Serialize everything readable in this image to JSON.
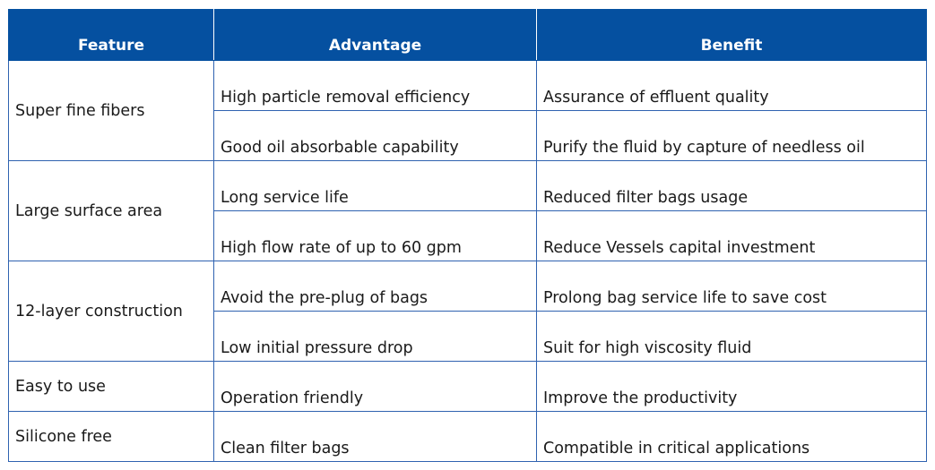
{
  "headers": {
    "feature": "Feature",
    "advantage": "Advantage",
    "benefit": "Benefit"
  },
  "rows": [
    {
      "feature": "Super fine fibers",
      "items": [
        {
          "advantage": "High particle removal efficiency",
          "benefit": "Assurance of effluent quality"
        },
        {
          "advantage": "Good oil absorbable capability",
          "benefit": "Purify the fluid by capture of needless oil"
        }
      ]
    },
    {
      "feature": "Large surface area",
      "items": [
        {
          "advantage": "Long service life",
          "benefit": "Reduced filter bags usage"
        },
        {
          "advantage": "High flow rate of up to 60 gpm",
          "benefit": "Reduce Vessels capital investment"
        }
      ]
    },
    {
      "feature": "12-layer construction",
      "items": [
        {
          "advantage": "Avoid the pre-plug of bags",
          "benefit": "Prolong bag service life to save cost"
        },
        {
          "advantage": "Low initial pressure drop",
          "benefit": "Suit for high viscosity fluid"
        }
      ]
    },
    {
      "feature": "Easy to use",
      "items": [
        {
          "advantage": "Operation friendly",
          "benefit": "Improve the productivity"
        }
      ]
    },
    {
      "feature": "Silicone free",
      "items": [
        {
          "advantage": "Clean filter bags",
          "benefit": "Compatible in critical applications"
        }
      ]
    }
  ],
  "colors": {
    "header_background": "#0550a0",
    "header_text": "#ffffff",
    "grid_line": "#2f62b0",
    "body_text": "#1a1a1a"
  }
}
